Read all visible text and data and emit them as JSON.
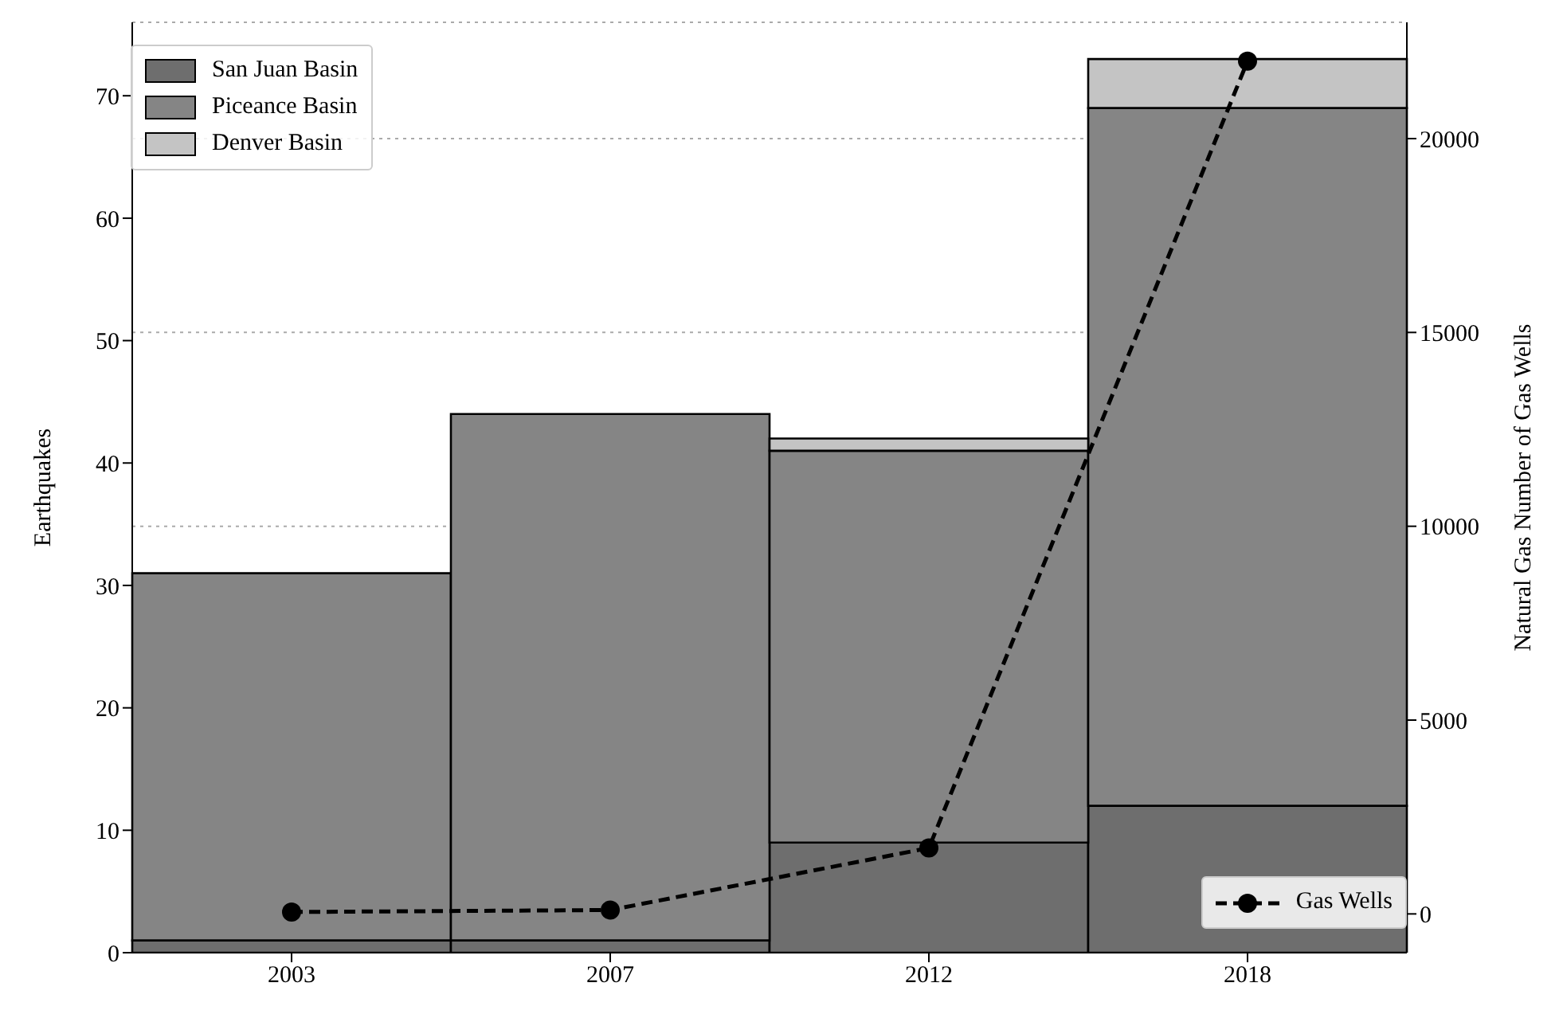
{
  "chart_data": {
    "type": "bar",
    "stacked": true,
    "categories": [
      "2003",
      "2007",
      "2012",
      "2018"
    ],
    "ylabel": "Earthquakes",
    "y2label": "Natural Gas Number of Gas Wells",
    "ylim": [
      0,
      76
    ],
    "yticks": [
      0,
      10,
      20,
      30,
      40,
      50,
      60,
      70
    ],
    "y2lim": [
      -1000,
      23000
    ],
    "y2ticks": [
      0,
      5000,
      10000,
      15000,
      20000
    ],
    "grid": "y",
    "legend": "top left",
    "series": [
      {
        "name": "San Juan Basin",
        "color": "#6e6e6e",
        "values": [
          1,
          1,
          9,
          12
        ]
      },
      {
        "name": "Piceance Basin",
        "color": "#858585",
        "values": [
          30,
          43,
          32,
          57
        ]
      },
      {
        "name": "Denver Basin",
        "color": "#c4c4c4",
        "values": [
          0,
          0,
          1,
          4
        ]
      },
      {
        "name": "Gas Wells",
        "type": "line",
        "axis": "y2",
        "color": "#000000",
        "marker": "circle",
        "line_style": "dashed",
        "values": [
          50,
          100,
          1700,
          22000
        ]
      }
    ]
  }
}
